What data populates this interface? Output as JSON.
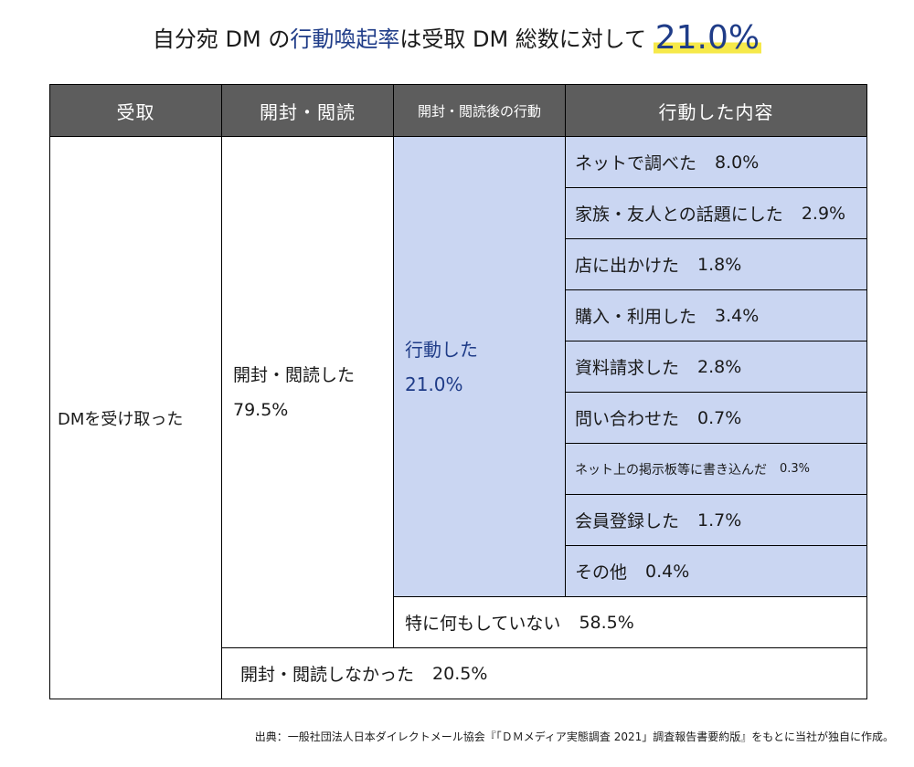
{
  "title": {
    "prefix": "自分宛 DM の",
    "highlight": "行動喚起率",
    "middle": "は受取 DM 総数に対して",
    "rate": "21.0%"
  },
  "table": {
    "headers": [
      "受取",
      "開封・閲読",
      "開封・閲読後の行動",
      "行動した内容"
    ],
    "received": "DMを受け取った",
    "opened": {
      "label": "開封・閲読した",
      "value": "79.5%"
    },
    "acted": {
      "label": "行動した",
      "value": "21.0%"
    },
    "actions": [
      {
        "label": "ネットで調べた",
        "value": "8.0%"
      },
      {
        "label": "家族・友人との話題にした",
        "value": "2.9%"
      },
      {
        "label": "店に出かけた",
        "value": "1.8%"
      },
      {
        "label": "購入・利用した",
        "value": "3.4%"
      },
      {
        "label": "資料請求した",
        "value": "2.8%"
      },
      {
        "label": "問い合わせた",
        "value": "0.7%"
      },
      {
        "label": "ネット上の掲示板等に書き込んだ",
        "value": "0.3%"
      },
      {
        "label": "会員登録した",
        "value": "1.7%"
      },
      {
        "label": "その他",
        "value": "0.4%"
      }
    ],
    "no_action": {
      "label": "特に何もしていない",
      "value": "58.5%"
    },
    "not_opened": {
      "label": "開封・閲読しなかった",
      "value": "20.5%"
    }
  },
  "source": "出典：一般社団法人日本ダイレクトメール協会『「ＤＭメディア実態調査 2021」調査報告書要約版』をもとに当社が独自に作成。",
  "colors": {
    "header_bg": "#5d5d5d",
    "acted_bg": "#cad6f2",
    "accent": "#1f3c88",
    "highlight_marker": "#f6e94a"
  }
}
